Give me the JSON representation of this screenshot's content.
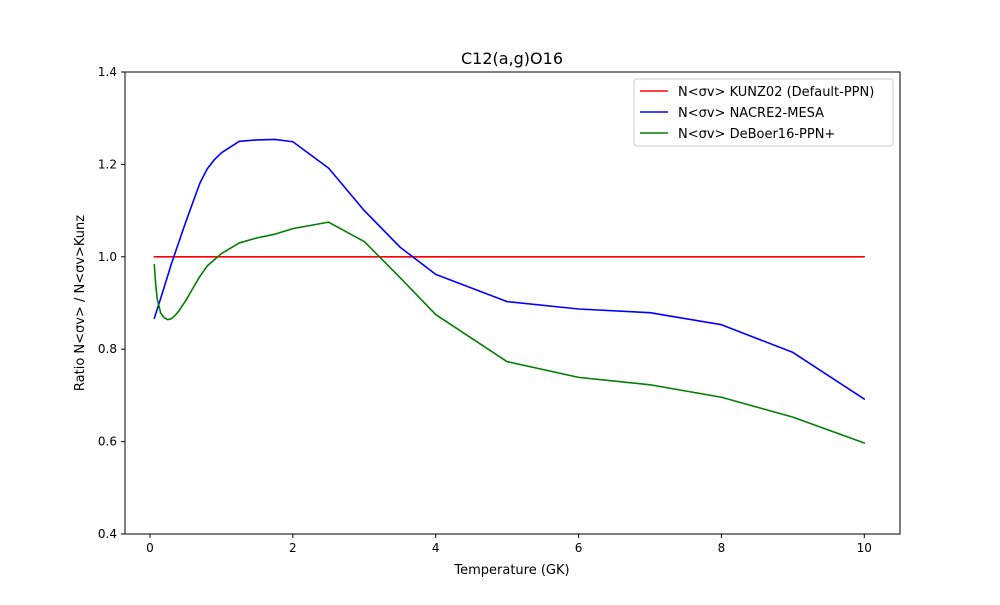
{
  "chart_data": {
    "type": "line",
    "title": "C12(a,g)O16",
    "xlabel": "Temperature (GK)",
    "ylabel": "Ratio N<σv> / N<σv>Kunz",
    "xlim": [
      -0.35,
      10.5
    ],
    "ylim": [
      0.4,
      1.4
    ],
    "xticks": [
      0,
      2,
      4,
      6,
      8,
      10
    ],
    "xtick_labels": [
      "0",
      "2",
      "4",
      "6",
      "8",
      "10"
    ],
    "yticks": [
      0.4,
      0.6,
      0.8,
      1.0,
      1.2,
      1.4
    ],
    "ytick_labels": [
      "0.4",
      "0.6",
      "0.8",
      "1.0",
      "1.2",
      "1.4"
    ],
    "grid": false,
    "legend_position": "top-right",
    "series": [
      {
        "name": "N<σv> KUNZ02 (Default-PPN)",
        "color": "#ff0000",
        "x": [
          0.06,
          10
        ],
        "y": [
          1.0,
          1.0
        ]
      },
      {
        "name": "N<σv> NACRE2-MESA",
        "color": "#0000ff",
        "x": [
          0.06,
          0.15,
          0.3,
          0.5,
          0.7,
          0.8,
          0.9,
          1.0,
          1.25,
          1.5,
          1.75,
          2.0,
          2.5,
          3.0,
          3.5,
          4.0,
          5.0,
          6.0,
          7.0,
          8.0,
          9.0,
          10.0
        ],
        "y": [
          0.867,
          0.91,
          0.985,
          1.075,
          1.16,
          1.19,
          1.21,
          1.225,
          1.25,
          1.253,
          1.254,
          1.249,
          1.192,
          1.1,
          1.021,
          0.962,
          0.903,
          0.887,
          0.879,
          0.853,
          0.793,
          0.692
        ]
      },
      {
        "name": "N<σv> DeBoer16-PPN+",
        "color": "#008000",
        "x": [
          0.06,
          0.08,
          0.1,
          0.15,
          0.2,
          0.25,
          0.3,
          0.35,
          0.4,
          0.5,
          0.6,
          0.7,
          0.8,
          1.0,
          1.25,
          1.5,
          1.75,
          2.0,
          2.5,
          3.0,
          3.5,
          4.0,
          5.0,
          6.0,
          7.0,
          8.0,
          9.0,
          10.0
        ],
        "y": [
          0.983,
          0.94,
          0.91,
          0.878,
          0.868,
          0.864,
          0.866,
          0.873,
          0.882,
          0.905,
          0.932,
          0.958,
          0.98,
          1.007,
          1.03,
          1.041,
          1.049,
          1.061,
          1.075,
          1.033,
          0.955,
          0.875,
          0.773,
          0.739,
          0.723,
          0.696,
          0.653,
          0.597
        ]
      }
    ]
  }
}
